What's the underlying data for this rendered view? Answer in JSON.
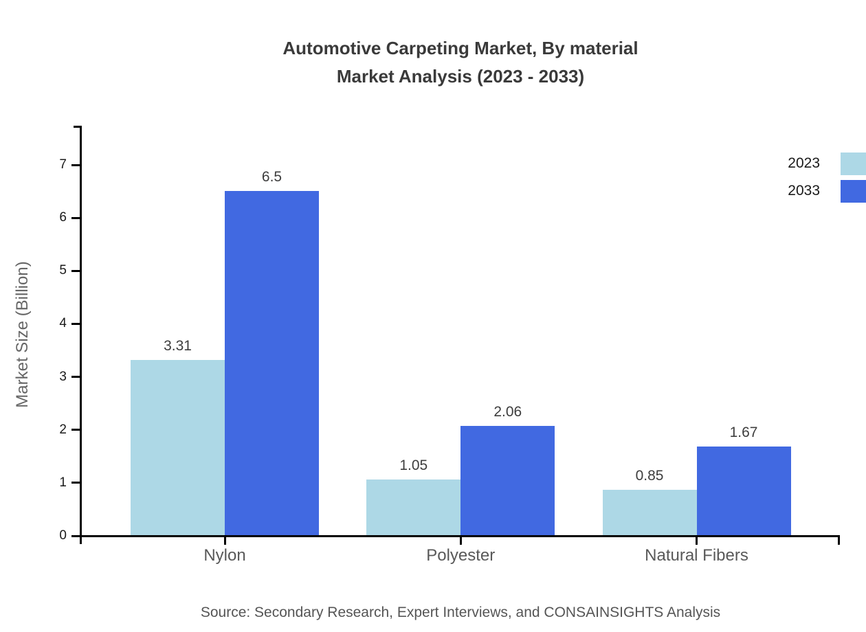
{
  "chart_data": {
    "type": "bar",
    "title": "Automotive Carpeting Market, By material",
    "subtitle": "Market Analysis (2023 - 2033)",
    "ylabel": "Market Size (Billion)",
    "xlabel": "",
    "categories": [
      "Nylon",
      "Polyester",
      "Natural Fibers"
    ],
    "series": [
      {
        "name": "2023",
        "color": "#ADD8E6",
        "values": [
          3.31,
          1.05,
          0.85
        ]
      },
      {
        "name": "2033",
        "color": "#4169E1",
        "values": [
          6.5,
          2.06,
          1.67
        ]
      }
    ],
    "yticks": [
      0,
      1,
      2,
      3,
      4,
      5,
      6,
      7
    ],
    "ylim": [
      0,
      7.75
    ],
    "grid": false,
    "legend_position": "top-right",
    "axis_color": "#000000",
    "source_note": "Source: Secondary Research, Expert Interviews, and CONSAINSIGHTS Analysis"
  }
}
